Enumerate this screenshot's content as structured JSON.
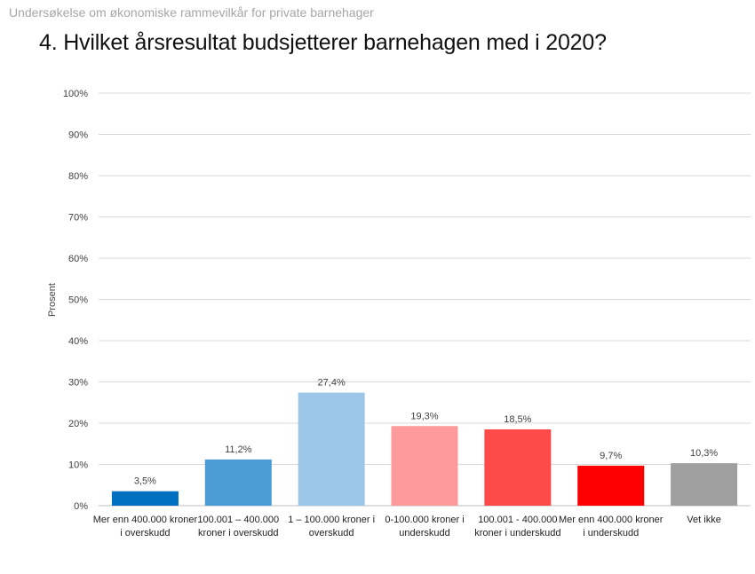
{
  "header": {
    "text": "Undersøkelse om økonomiske rammevilkår for private barnehager"
  },
  "chart_data": {
    "type": "bar",
    "title": "4. Hvilket årsresultat budsjetterer barnehagen med i 2020?",
    "ylabel": "Prosent",
    "xlabel": "",
    "ylim": [
      0,
      100
    ],
    "yticks": [
      "0%",
      "10%",
      "20%",
      "30%",
      "40%",
      "50%",
      "60%",
      "70%",
      "80%",
      "90%",
      "100%"
    ],
    "grid": true,
    "categories": [
      "Mer enn 400.000 kroner i overskudd",
      "100.001 – 400.000 kroner i overskudd",
      "1 – 100.000 kroner i overskudd",
      "0-100.000 kroner i underskudd",
      "100.001 - 400.000 kroner i underskudd",
      "Mer enn 400.000 kroner i underskudd",
      "Vet ikke"
    ],
    "values": [
      3.5,
      11.2,
      27.4,
      19.3,
      18.5,
      9.7,
      10.3
    ],
    "value_labels": [
      "3,5%",
      "11,2%",
      "27,4%",
      "19,3%",
      "18,5%",
      "9,7%",
      "10,3%"
    ],
    "colors": [
      "#0070c0",
      "#4a9bd6",
      "#9bc6e8",
      "#ff9a9a",
      "#ff4a4a",
      "#ff0000",
      "#a0a0a0"
    ]
  }
}
